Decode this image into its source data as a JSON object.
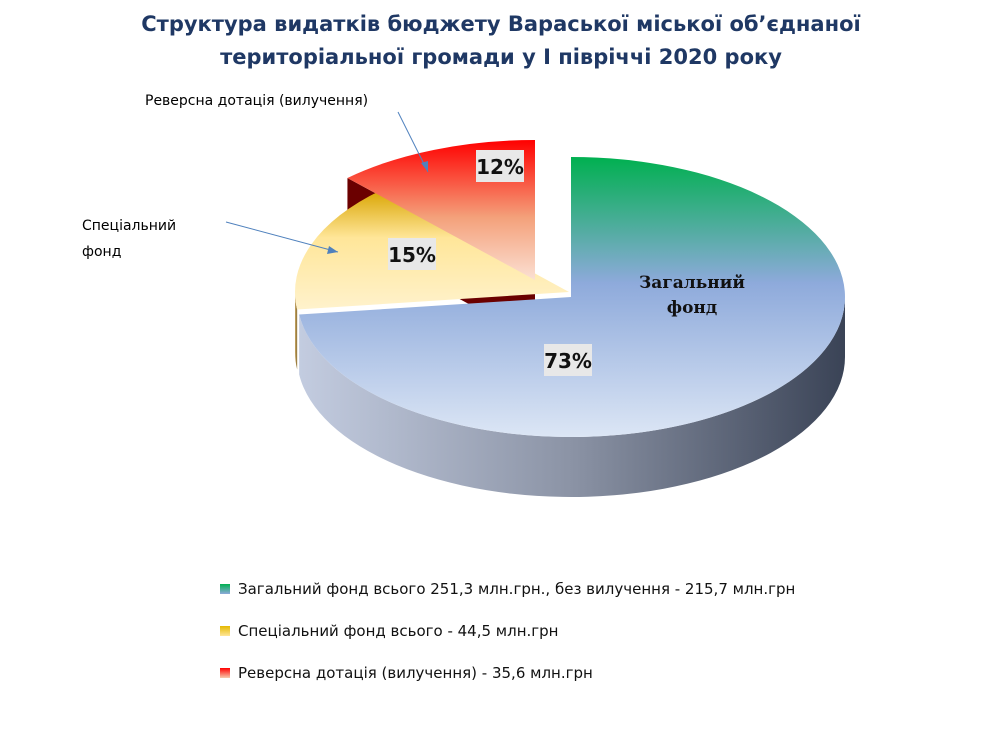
{
  "chart_data": {
    "type": "pie",
    "title_lines": [
      "Структура видатків бюджету Вараської міської об’єднаної",
      "територіальної громади у І півріччі  2020 року"
    ],
    "slices": [
      {
        "name_lines": [
          "Загальний",
          "фонд"
        ],
        "value": 73,
        "label": "73%",
        "legend": "Загальний фонд всього 251,3 млн.грн., без вилучення - 215,7 млн.грн",
        "color_top": "#00b050",
        "color_bottom": "#8eaadb"
      },
      {
        "name_lines": [
          "Спеціальний",
          "фонд"
        ],
        "value": 15,
        "label": "15%",
        "legend": "Спеціальний фонд всього - 44,5 млн.грн",
        "color_top": "#e5b800",
        "color_bottom": "#ffe699"
      },
      {
        "name_lines": [
          "Реверсна дотація (вилучення)"
        ],
        "value": 12,
        "label": "12%",
        "legend": "Реверсна дотація (вилучення) - 35,6 млн.грн",
        "color_top": "#ff0000",
        "color_bottom": "#f8cbad"
      }
    ],
    "legend_position": "bottom",
    "style": "3d-pie-exploded"
  }
}
